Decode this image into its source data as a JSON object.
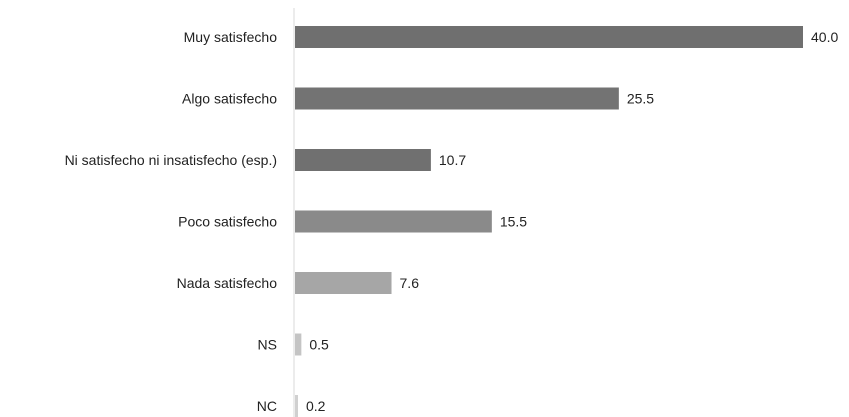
{
  "chart_data": {
    "type": "bar",
    "orientation": "horizontal",
    "categories": [
      "Muy satisfecho",
      "Algo satisfecho",
      "Ni satisfecho ni insatisfecho (esp.)",
      "Poco satisfecho",
      "Nada satisfecho",
      "NS",
      "NC"
    ],
    "values": [
      40.0,
      25.5,
      10.7,
      15.5,
      7.6,
      0.5,
      0.2
    ],
    "value_labels": [
      "40.0",
      "25.5",
      "10.7",
      "15.5",
      "7.6",
      "0.5",
      "0.2"
    ],
    "bar_colors": [
      "#6f6f6f",
      "#737373",
      "#707070",
      "#8a8a8a",
      "#a6a6a6",
      "#c4c4c4",
      "#d0d0d0"
    ],
    "xlim": [
      0,
      40
    ],
    "grid": false,
    "legend": "none",
    "title": "",
    "xlabel": "",
    "ylabel": ""
  }
}
